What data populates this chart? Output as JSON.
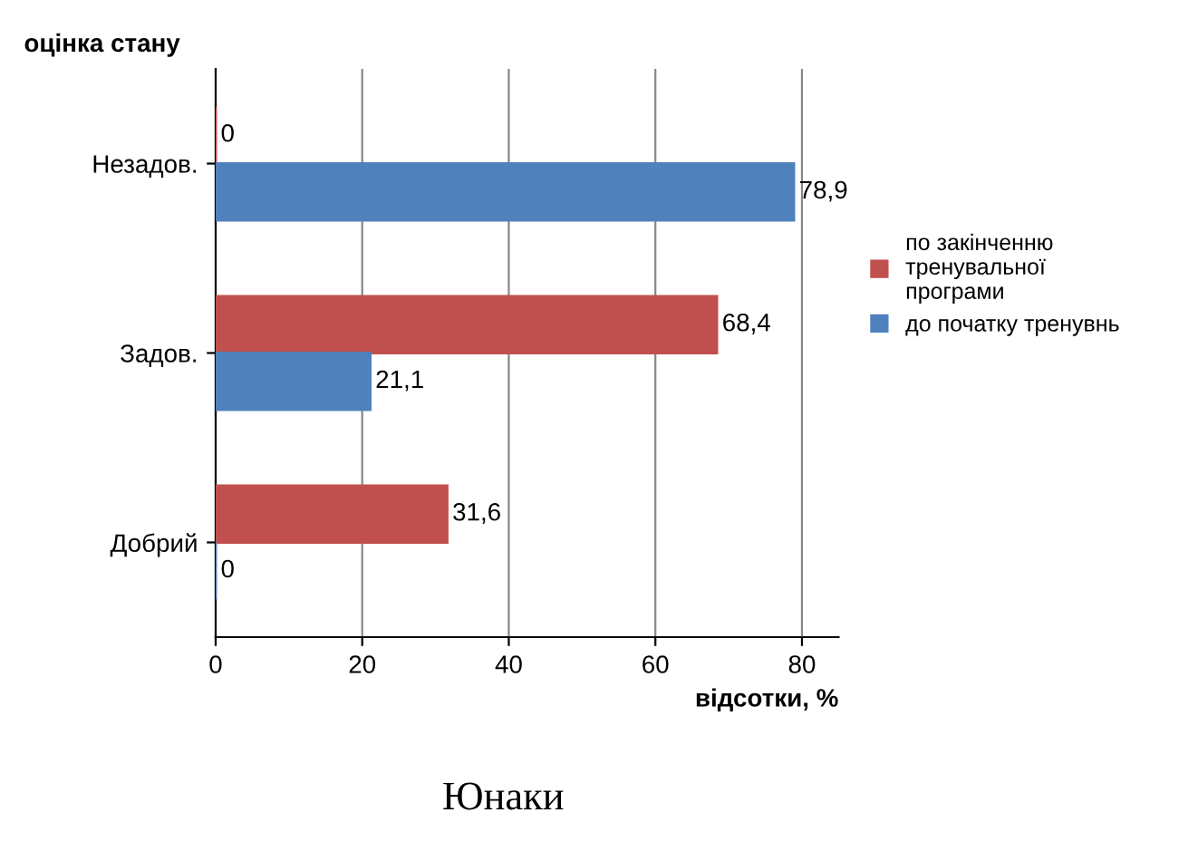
{
  "chart_data": {
    "type": "bar",
    "orientation": "horizontal",
    "categories": [
      "Незадов.",
      "Задов.",
      "Добрий"
    ],
    "series": [
      {
        "name": "по закінченню тренувальної програми",
        "color": "#c0504d",
        "values": [
          0,
          68.4,
          31.6
        ],
        "value_labels": [
          "0",
          "68,4",
          "31,6"
        ]
      },
      {
        "name": "до початку тренувнь",
        "color": "#4f81bd",
        "values": [
          78.9,
          21.1,
          0
        ],
        "value_labels": [
          "78,9",
          "21,1",
          "0"
        ]
      }
    ],
    "xlim": [
      0,
      85
    ],
    "xticks": [
      0,
      20,
      40,
      60,
      80
    ],
    "ylabel": "оцінка стану",
    "xlabel": "відсотки, %",
    "annotations": [
      "Юнаки"
    ],
    "grid": "x",
    "legend": "right"
  }
}
